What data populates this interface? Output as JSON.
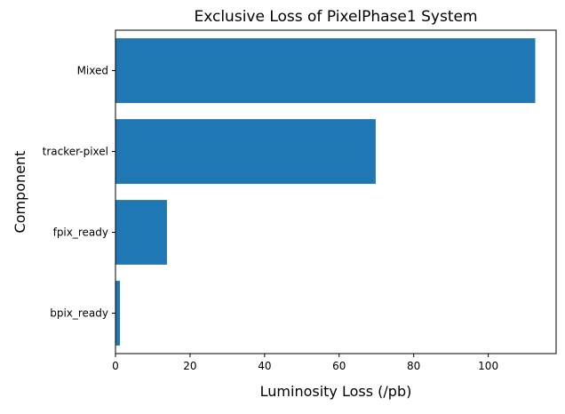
{
  "chart_data": {
    "type": "bar",
    "orientation": "horizontal",
    "title": "Exclusive Loss of PixelPhase1 System",
    "xlabel": "Luminosity Loss (/pb)",
    "ylabel": "Component",
    "categories": [
      "bpix_ready",
      "fpix_ready",
      "tracker-pixel",
      "Mixed"
    ],
    "values": [
      1.2,
      13.8,
      69.8,
      112.6
    ],
    "xlim": [
      0,
      118.2
    ],
    "xticks": [
      0,
      20,
      40,
      60,
      80,
      100
    ],
    "grid": false,
    "bar_color": "#1f77b4"
  }
}
